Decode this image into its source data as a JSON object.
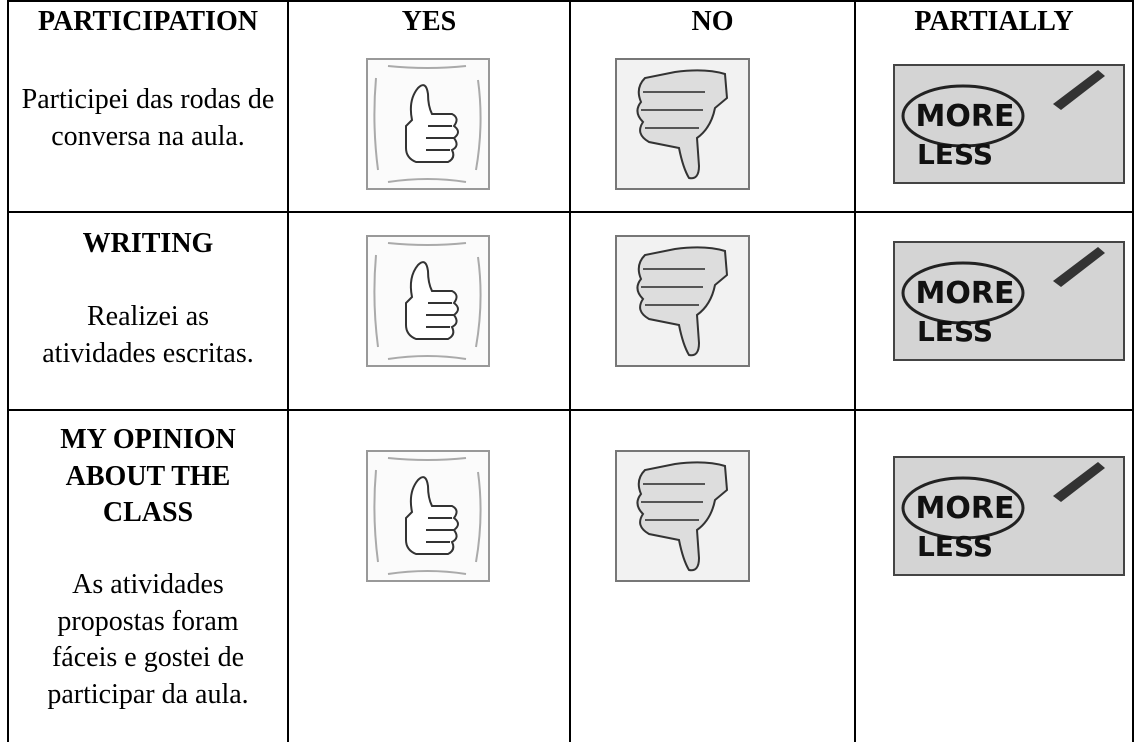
{
  "table": {
    "headers": [
      "YES",
      "NO",
      "PARTIALLY"
    ],
    "rows": [
      {
        "title": "PARTICIPATION",
        "text": "Participei das rodas de conversa na aula."
      },
      {
        "title": "WRITING",
        "text": "Realizei as atividades escritas."
      },
      {
        "title": "MY OPINION ABOUT THE CLASS",
        "text": "As atividades propostas foram fáceis e gostei de participar da aula."
      }
    ],
    "partially_image": {
      "top": "MORE",
      "bottom": "LESS"
    }
  }
}
